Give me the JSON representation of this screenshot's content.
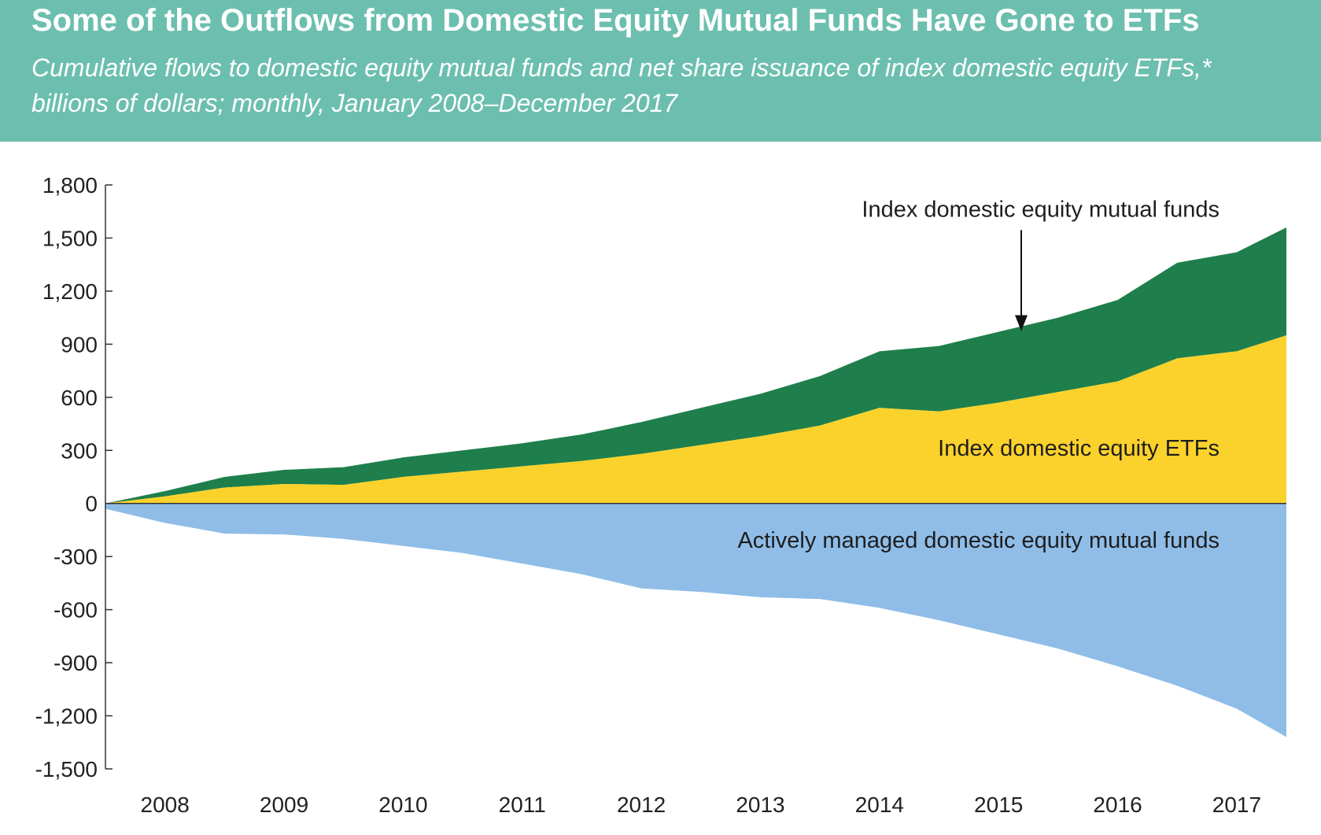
{
  "colors": {
    "header_bg": "#6cbfae",
    "mutual_funds": "#1f7f4c",
    "etfs": "#fbd22c",
    "active": "#8fbde8",
    "axis": "#333333"
  },
  "chart_data": {
    "type": "area",
    "title": "Some of the Outflows from Domestic Equity Mutual Funds Have Gone to ETFs",
    "subtitle": "Cumulative flows to domestic equity mutual funds and net share issuance of index domestic equity ETFs,* billions of dollars; monthly, January 2008–December 2017",
    "xlabel": "",
    "ylabel": "",
    "x_ticks": [
      "2008",
      "2009",
      "2010",
      "2011",
      "2012",
      "2013",
      "2014",
      "2015",
      "2016",
      "2017"
    ],
    "y_ticks": [
      1800,
      1500,
      1200,
      900,
      600,
      300,
      0,
      -300,
      -600,
      -900,
      -1200,
      -1500
    ],
    "y_tick_labels": [
      "1,800",
      "1,500",
      "1,200",
      "900",
      "600",
      "300",
      "0",
      "-300",
      "-600",
      "-900",
      "-1,200",
      "-1,500"
    ],
    "ylim": [
      -1500,
      1800
    ],
    "xlim": [
      "2008-01",
      "2017-12"
    ],
    "grid": false,
    "x": [
      "2008-01",
      "2008-07",
      "2009-01",
      "2009-07",
      "2010-01",
      "2010-07",
      "2011-01",
      "2011-07",
      "2012-01",
      "2012-07",
      "2013-01",
      "2013-07",
      "2014-01",
      "2014-07",
      "2015-01",
      "2015-07",
      "2016-01",
      "2016-07",
      "2017-01",
      "2017-07",
      "2017-12"
    ],
    "series": [
      {
        "name": "Index domestic equity ETFs",
        "stack": "positive",
        "values": [
          0,
          40,
          90,
          110,
          105,
          150,
          180,
          210,
          240,
          280,
          330,
          380,
          440,
          540,
          520,
          570,
          630,
          690,
          820,
          860,
          950
        ]
      },
      {
        "name": "Index domestic equity mutual funds",
        "stack": "positive",
        "values": [
          0,
          30,
          60,
          80,
          100,
          110,
          120,
          130,
          150,
          180,
          210,
          240,
          280,
          320,
          370,
          400,
          420,
          460,
          540,
          560,
          610
        ]
      },
      {
        "name": "Actively managed domestic equity mutual funds",
        "stack": "negative",
        "values": [
          -30,
          -110,
          -170,
          -175,
          -200,
          -240,
          -280,
          -340,
          -400,
          -480,
          -500,
          -530,
          -540,
          -590,
          -660,
          -740,
          -820,
          -920,
          -1030,
          -1160,
          -1320
        ]
      }
    ],
    "annotations": [
      {
        "text": "Index domestic equity mutual funds",
        "arrow": true
      },
      {
        "text": "Index domestic equity ETFs"
      },
      {
        "text": "Actively managed domestic equity mutual funds"
      }
    ]
  }
}
